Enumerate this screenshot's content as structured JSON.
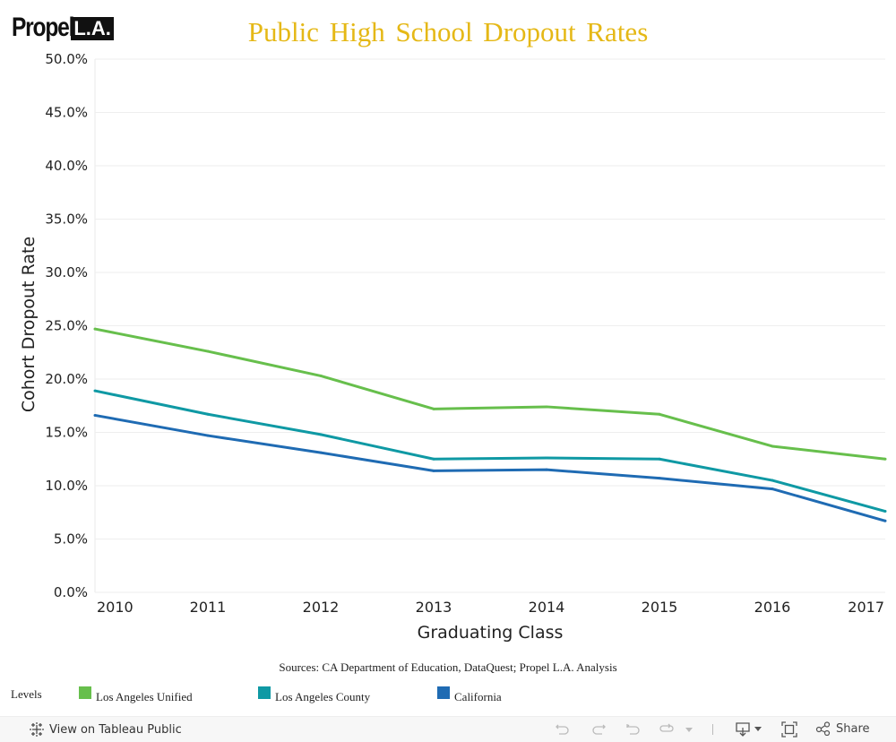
{
  "header": {
    "logo_text": "Propel",
    "logo_mark": "L.A.",
    "title": "Public High School Dropout Rates"
  },
  "colors": {
    "title": "#e5b816",
    "los_angeles_unified": "#67bf4c",
    "los_angeles_county": "#0f99a4",
    "california": "#1f6bb3",
    "gridline": "#eeeeee"
  },
  "chart_data": {
    "type": "line",
    "title": "Public High School Dropout Rates",
    "xlabel": "Graduating Class",
    "ylabel": "Cohort Dropout Rate",
    "x": [
      "2010",
      "2011",
      "2012",
      "2013",
      "2014",
      "2015",
      "2016",
      "2017"
    ],
    "yticks": [
      "0.0%",
      "5.0%",
      "10.0%",
      "15.0%",
      "20.0%",
      "25.0%",
      "30.0%",
      "35.0%",
      "40.0%",
      "45.0%",
      "50.0%"
    ],
    "ylim": [
      0,
      50
    ],
    "grid": true,
    "legend_position": "bottom",
    "legend_title": "Levels",
    "series": [
      {
        "name": "Los Angeles Unified",
        "color": "#67bf4c",
        "values": [
          24.7,
          22.6,
          20.3,
          17.2,
          17.4,
          16.7,
          13.7,
          12.5
        ]
      },
      {
        "name": "Los Angeles County",
        "color": "#0f99a4",
        "values": [
          18.9,
          16.7,
          14.8,
          12.5,
          12.6,
          12.5,
          10.5,
          7.6
        ]
      },
      {
        "name": "California",
        "color": "#1f6bb3",
        "values": [
          16.6,
          14.7,
          13.1,
          11.4,
          11.5,
          10.7,
          9.7,
          6.7
        ]
      }
    ]
  },
  "sources": "Sources: CA Department of Education, DataQuest; Propel L.A. Analysis",
  "legend": {
    "title": "Levels",
    "items": [
      {
        "label": "Los Angeles Unified"
      },
      {
        "label": "Los Angeles County"
      },
      {
        "label": "California"
      }
    ]
  },
  "toolbar": {
    "view_on_tableau": "View on Tableau Public",
    "share": "Share",
    "icons": [
      "tableau-logo-icon",
      "undo-icon",
      "redo-icon",
      "revert-icon",
      "refresh-icon",
      "pause-dropdown-icon",
      "download-icon",
      "fullscreen-icon",
      "share-icon"
    ]
  }
}
